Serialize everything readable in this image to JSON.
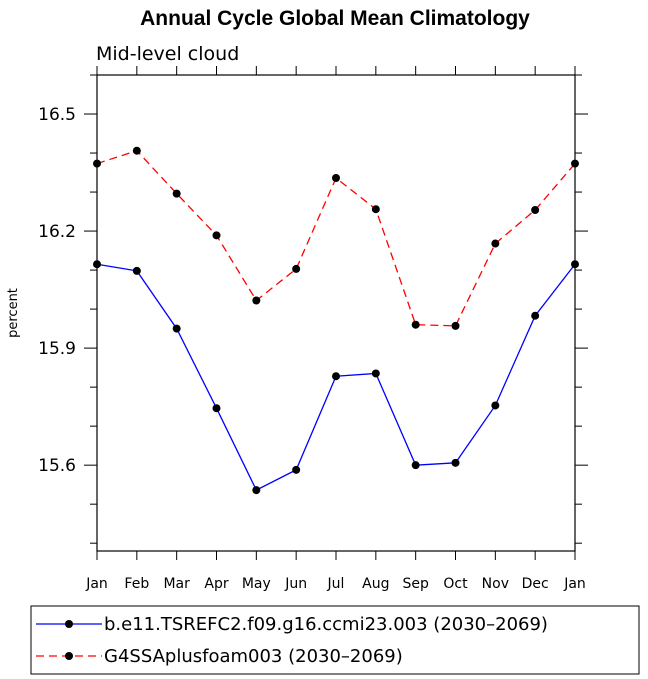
{
  "chart_data": {
    "type": "line",
    "title": "Annual Cycle Global Mean Climatology",
    "subtitle": "Mid-level cloud",
    "xlabel": "",
    "ylabel": "percent",
    "categories": [
      "Jan",
      "Feb",
      "Mar",
      "Apr",
      "May",
      "Jun",
      "Jul",
      "Aug",
      "Sep",
      "Oct",
      "Nov",
      "Dec",
      "Jan"
    ],
    "ylim": [
      15.38,
      16.6
    ],
    "yticks": [
      15.6,
      15.9,
      16.2,
      16.5
    ],
    "ytick_labels": [
      "15.6",
      "15.9",
      "16.2",
      "16.5"
    ],
    "grid": false,
    "legend_position": "bottom",
    "series": [
      {
        "name": "b.e11.TSREFC2.f09.g16.ccmi23.003 (2030–2069)",
        "color": "#0000ff",
        "dash": "solid",
        "values": [
          16.115,
          16.098,
          15.95,
          15.746,
          15.536,
          15.588,
          15.828,
          15.835,
          15.6,
          15.606,
          15.753,
          15.983,
          16.115
        ]
      },
      {
        "name": "G4SSAplusfoam003 (2030–2069)",
        "color": "#ff0000",
        "dash": "dashed",
        "values": [
          16.373,
          16.406,
          16.296,
          16.189,
          16.022,
          16.103,
          16.336,
          16.256,
          15.96,
          15.957,
          16.168,
          16.254,
          16.373
        ]
      }
    ]
  }
}
